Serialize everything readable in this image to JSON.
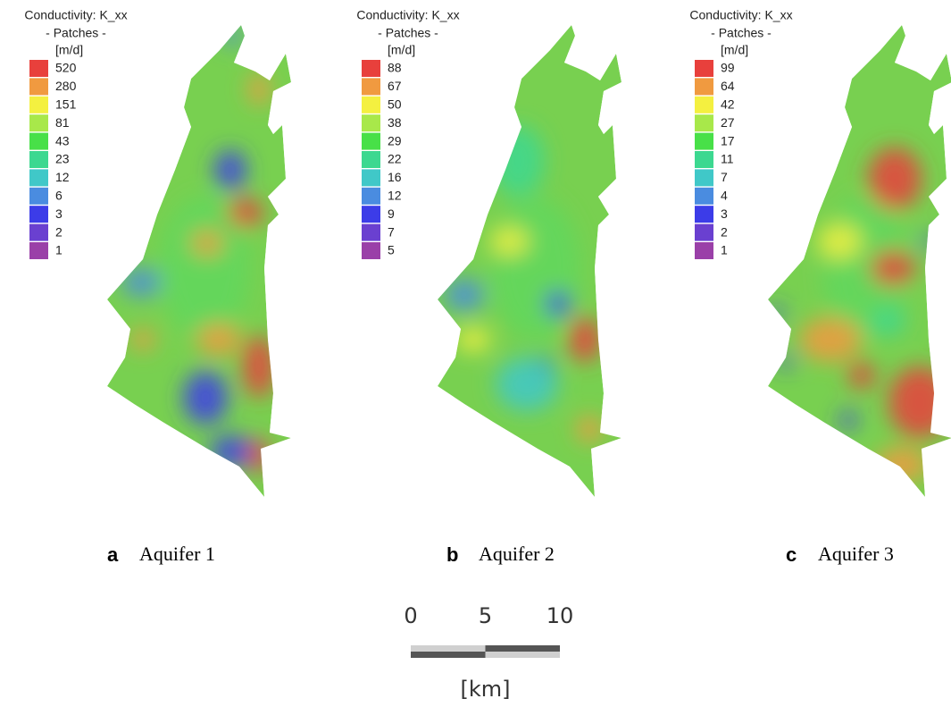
{
  "panels": [
    {
      "legend_title": "Conductivity: K_xx",
      "legend_subtitle": "- Patches -",
      "legend_unit": "[m/d]",
      "legend": [
        {
          "value": 520,
          "color": "#e8403c"
        },
        {
          "value": 280,
          "color": "#f09a40"
        },
        {
          "value": 151,
          "color": "#f4f040"
        },
        {
          "value": 81,
          "color": "#a8e84a"
        },
        {
          "value": 43,
          "color": "#48e048"
        },
        {
          "value": 23,
          "color": "#3cd890"
        },
        {
          "value": 12,
          "color": "#40c8c8"
        },
        {
          "value": 6,
          "color": "#4a8ce0"
        },
        {
          "value": 3,
          "color": "#3c3ce8"
        },
        {
          "value": 2,
          "color": "#6a40d0"
        },
        {
          "value": 1,
          "color": "#9a40a8"
        }
      ],
      "letter": "a",
      "label": "Aquifer 1"
    },
    {
      "legend_title": "Conductivity: K_xx",
      "legend_subtitle": "- Patches -",
      "legend_unit": "[m/d]",
      "legend": [
        {
          "value": 88,
          "color": "#e8403c"
        },
        {
          "value": 67,
          "color": "#f09a40"
        },
        {
          "value": 50,
          "color": "#f4f040"
        },
        {
          "value": 38,
          "color": "#a8e84a"
        },
        {
          "value": 29,
          "color": "#48e048"
        },
        {
          "value": 22,
          "color": "#3cd890"
        },
        {
          "value": 16,
          "color": "#40c8c8"
        },
        {
          "value": 12,
          "color": "#4a8ce0"
        },
        {
          "value": 9,
          "color": "#3c3ce8"
        },
        {
          "value": 7,
          "color": "#6a40d0"
        },
        {
          "value": 5,
          "color": "#9a40a8"
        }
      ],
      "letter": "b",
      "label": "Aquifer 2"
    },
    {
      "legend_title": "Conductivity: K_xx",
      "legend_subtitle": "- Patches -",
      "legend_unit": "[m/d]",
      "legend": [
        {
          "value": 99,
          "color": "#e8403c"
        },
        {
          "value": 64,
          "color": "#f09a40"
        },
        {
          "value": 42,
          "color": "#f4f040"
        },
        {
          "value": 27,
          "color": "#a8e84a"
        },
        {
          "value": 17,
          "color": "#48e048"
        },
        {
          "value": 11,
          "color": "#3cd890"
        },
        {
          "value": 7,
          "color": "#40c8c8"
        },
        {
          "value": 4,
          "color": "#4a8ce0"
        },
        {
          "value": 3,
          "color": "#3c3ce8"
        },
        {
          "value": 2,
          "color": "#6a40d0"
        },
        {
          "value": 1,
          "color": "#9a40a8"
        }
      ],
      "letter": "c",
      "label": "Aquifer 3"
    }
  ],
  "scale_bar": {
    "ticks": [
      0,
      5,
      10
    ],
    "unit": "[km]"
  }
}
